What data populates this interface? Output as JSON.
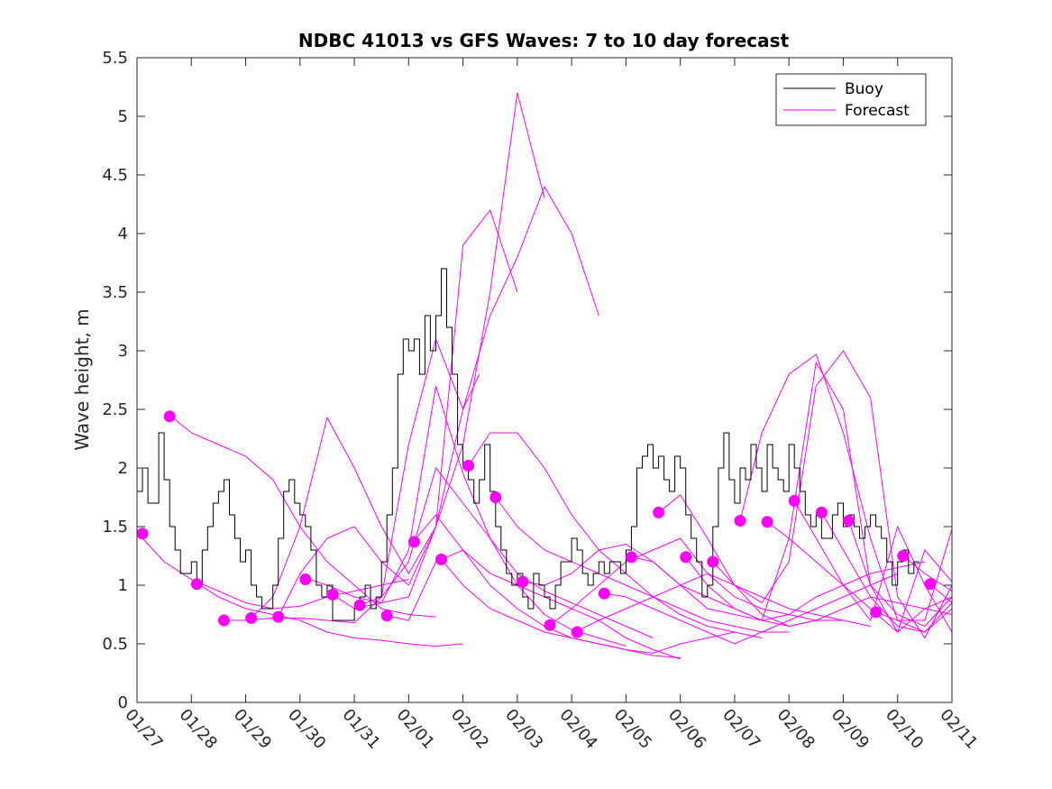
{
  "chart_data": {
    "type": "line",
    "title": "NDBC 41013 vs GFS Waves: 7 to 10 day forecast",
    "xlabel": "",
    "ylabel": "Wave height, m",
    "xlim": [
      0,
      15
    ],
    "ylim": [
      0,
      5.5
    ],
    "x_tick_labels": [
      "01/27",
      "01/28",
      "01/29",
      "01/30",
      "01/31",
      "02/01",
      "02/02",
      "02/03",
      "02/04",
      "02/05",
      "02/06",
      "02/07",
      "02/08",
      "02/09",
      "02/10",
      "02/11"
    ],
    "y_ticks": [
      0,
      0.5,
      1,
      1.5,
      2,
      2.5,
      3,
      3.5,
      4,
      4.5,
      5,
      5.5
    ],
    "y_tick_labels": [
      "0",
      "0.5",
      "1",
      "1.5",
      "2",
      "2.5",
      "3",
      "3.5",
      "4",
      "4.5",
      "5",
      "5.5"
    ],
    "legend": {
      "position": "top-right",
      "entries": [
        "Buoy",
        "Forecast"
      ]
    },
    "colors": {
      "buoy": "#000000",
      "forecast": "#ff00ff"
    },
    "buoy": {
      "name": "Buoy",
      "x": [
        0,
        0.1,
        0.2,
        0.3,
        0.4,
        0.5,
        0.6,
        0.7,
        0.8,
        0.9,
        1.0,
        1.1,
        1.2,
        1.3,
        1.4,
        1.5,
        1.6,
        1.7,
        1.8,
        1.9,
        2.0,
        2.1,
        2.2,
        2.3,
        2.4,
        2.5,
        2.6,
        2.7,
        2.8,
        2.9,
        3.0,
        3.1,
        3.2,
        3.3,
        3.4,
        3.5,
        3.6,
        3.7,
        3.8,
        3.9,
        4.0,
        4.1,
        4.2,
        4.3,
        4.4,
        4.5,
        4.6,
        4.7,
        4.8,
        4.9,
        5.0,
        5.1,
        5.2,
        5.3,
        5.4,
        5.5,
        5.6,
        5.7,
        5.8,
        5.9,
        6.0,
        6.1,
        6.2,
        6.3,
        6.4,
        6.5,
        6.6,
        6.7,
        6.8,
        6.9,
        7.0,
        7.1,
        7.2,
        7.3,
        7.4,
        7.5,
        7.6,
        7.7,
        7.8,
        7.9,
        8.0,
        8.1,
        8.2,
        8.3,
        8.4,
        8.5,
        8.6,
        8.7,
        8.8,
        8.9,
        9.0,
        9.1,
        9.2,
        9.3,
        9.4,
        9.5,
        9.6,
        9.7,
        9.8,
        9.9,
        10.0,
        10.1,
        10.2,
        10.3,
        10.4,
        10.5,
        10.6,
        10.7,
        10.8,
        10.9,
        11.0,
        11.1,
        11.2,
        11.3,
        11.4,
        11.5,
        11.6,
        11.7,
        11.8,
        11.9,
        12.0,
        12.1,
        12.2,
        12.3,
        12.4,
        12.5,
        12.6,
        12.7,
        12.8,
        12.9,
        13.0,
        13.1,
        13.2,
        13.3,
        13.4,
        13.5,
        13.6,
        13.7,
        13.8,
        13.9,
        14.0,
        14.1,
        14.2,
        14.3,
        14.4
      ],
      "y": [
        1.8,
        2.0,
        1.7,
        1.7,
        2.3,
        1.9,
        1.5,
        1.3,
        1.1,
        1.1,
        1.2,
        1.0,
        1.3,
        1.5,
        1.7,
        1.8,
        1.9,
        1.6,
        1.4,
        1.2,
        1.3,
        1.0,
        0.9,
        0.8,
        0.8,
        1.0,
        1.4,
        1.8,
        1.9,
        1.7,
        1.6,
        1.5,
        1.3,
        1.0,
        0.9,
        1.0,
        0.7,
        0.7,
        0.7,
        0.7,
        0.8,
        0.9,
        1.0,
        0.8,
        0.9,
        1.2,
        1.6,
        2.0,
        2.8,
        3.1,
        3.0,
        3.1,
        2.8,
        3.3,
        3.0,
        3.3,
        3.7,
        3.2,
        2.8,
        2.2,
        2.0,
        1.9,
        1.7,
        1.9,
        2.2,
        1.8,
        1.5,
        1.3,
        1.1,
        1.0,
        1.1,
        0.9,
        0.8,
        1.1,
        1.0,
        0.9,
        0.8,
        1.0,
        1.2,
        1.2,
        1.4,
        1.3,
        1.1,
        1.0,
        1.1,
        1.2,
        1.1,
        1.2,
        1.2,
        1.1,
        1.3,
        1.5,
        2.0,
        2.1,
        2.2,
        2.0,
        2.1,
        1.9,
        1.8,
        2.1,
        2.0,
        1.6,
        1.4,
        1.2,
        0.9,
        1.0,
        1.5,
        2.0,
        2.3,
        1.9,
        1.7,
        2.0,
        1.9,
        2.2,
        2.0,
        1.8,
        2.2,
        2.0,
        1.9,
        1.8,
        2.2,
        2.0,
        1.8,
        1.6,
        1.5,
        1.6,
        1.4,
        1.4,
        1.6,
        1.7,
        1.5,
        1.6,
        1.5,
        1.4,
        1.5,
        1.6,
        1.5,
        1.4,
        1.2,
        1.0,
        1.2,
        1.3,
        1.1,
        1.2,
        1.2
      ]
    },
    "forecast_series": [
      {
        "name": "Forecast",
        "x": [
          0.0,
          0.5,
          1.0,
          1.5,
          2.0,
          2.5,
          3.0,
          3.5,
          4.0,
          4.5,
          5.0
        ],
        "y": [
          1.45,
          1.2,
          1.05,
          0.95,
          0.85,
          0.8,
          0.82,
          0.9,
          0.95,
          1.0,
          1.05
        ]
      },
      {
        "name": "Forecast",
        "x": [
          0.6,
          1.0,
          1.5,
          2.0,
          2.5,
          3.0,
          3.5,
          4.0,
          4.5,
          5.0,
          5.5
        ],
        "y": [
          2.45,
          2.3,
          2.2,
          2.1,
          1.9,
          1.5,
          1.2,
          1.0,
          0.8,
          0.75,
          0.73
        ]
      },
      {
        "name": "Forecast",
        "x": [
          1.1,
          1.5,
          2.0,
          2.5,
          3.0,
          3.5,
          4.0,
          4.5,
          5.0,
          5.5,
          6.0
        ],
        "y": [
          1.02,
          0.9,
          0.8,
          0.75,
          0.7,
          0.6,
          0.55,
          0.53,
          0.5,
          0.48,
          0.5
        ]
      },
      {
        "name": "Forecast",
        "x": [
          1.6,
          2.0,
          2.5,
          3.0,
          3.5,
          4.0,
          4.5,
          5.0,
          5.5,
          6.0,
          6.3
        ],
        "y": [
          0.7,
          0.7,
          0.72,
          0.72,
          0.7,
          0.68,
          0.9,
          2.2,
          3.1,
          2.5,
          2.8
        ]
      },
      {
        "name": "Forecast",
        "x": [
          2.1,
          2.5,
          3.0,
          3.5,
          4.0,
          4.5,
          5.0,
          5.5,
          6.0,
          6.5,
          7.0
        ],
        "y": [
          0.72,
          0.9,
          1.5,
          2.43,
          2.0,
          1.5,
          1.1,
          1.5,
          3.9,
          4.2,
          3.5
        ]
      },
      {
        "name": "Forecast",
        "x": [
          2.6,
          3.0,
          3.5,
          4.0,
          4.5,
          5.0,
          5.5,
          6.0,
          6.5,
          7.0,
          7.5
        ],
        "y": [
          0.73,
          1.1,
          1.4,
          1.5,
          1.2,
          1.0,
          1.5,
          2.2,
          3.5,
          5.2,
          4.3
        ]
      },
      {
        "name": "Forecast",
        "x": [
          3.1,
          3.5,
          4.0,
          4.5,
          5.0,
          5.5,
          6.0,
          6.5,
          7.0,
          7.5,
          8.0,
          8.5
        ],
        "y": [
          1.06,
          1.0,
          0.9,
          0.85,
          0.9,
          1.5,
          2.5,
          3.3,
          3.8,
          4.4,
          4.0,
          3.3
        ]
      },
      {
        "name": "Forecast",
        "x": [
          3.6,
          4.0,
          4.5,
          5.0,
          5.5,
          6.0,
          6.5,
          7.0,
          7.5,
          8.0,
          8.5,
          9.0
        ],
        "y": [
          0.92,
          0.8,
          0.85,
          1.3,
          2.7,
          1.95,
          1.4,
          1.0,
          0.75,
          0.62,
          0.55,
          0.48
        ]
      },
      {
        "name": "Forecast",
        "x": [
          4.1,
          4.5,
          5.0,
          5.5,
          6.0,
          6.5,
          7.0,
          7.5,
          8.0,
          8.5,
          9.0,
          9.5
        ],
        "y": [
          0.83,
          0.9,
          1.2,
          2.0,
          1.7,
          1.4,
          1.1,
          0.95,
          0.85,
          0.75,
          0.65,
          0.55
        ]
      },
      {
        "name": "Forecast",
        "x": [
          4.6,
          5.0,
          5.5,
          6.0,
          6.5,
          7.0,
          7.5,
          8.0,
          8.5,
          9.0,
          9.5,
          10.0
        ],
        "y": [
          0.74,
          0.7,
          1.2,
          1.3,
          1.0,
          0.8,
          0.65,
          0.55,
          0.5,
          0.45,
          0.4,
          0.38
        ]
      },
      {
        "name": "Forecast",
        "x": [
          5.1,
          5.5,
          6.0,
          6.5,
          7.0,
          7.5,
          8.0,
          8.5,
          9.0,
          9.5,
          10.0
        ],
        "y": [
          1.38,
          1.6,
          1.3,
          1.1,
          1.0,
          0.9,
          0.8,
          0.7,
          0.55,
          0.45,
          0.37
        ]
      },
      {
        "name": "Forecast",
        "x": [
          5.6,
          6.0,
          6.5,
          7.0,
          7.5,
          8.0,
          8.5,
          9.0,
          9.5,
          10.0,
          10.5,
          11.0
        ],
        "y": [
          1.22,
          1.0,
          0.8,
          0.7,
          0.6,
          0.55,
          0.5,
          0.45,
          0.42,
          0.5,
          0.55,
          0.6
        ]
      },
      {
        "name": "Forecast",
        "x": [
          6.1,
          6.5,
          7.0,
          7.5,
          8.0,
          8.5,
          9.0,
          9.5,
          10.0,
          10.5,
          11.0,
          11.5
        ],
        "y": [
          2.02,
          2.3,
          2.3,
          2.0,
          1.6,
          1.3,
          1.1,
          0.9,
          0.75,
          0.65,
          0.6,
          0.55
        ]
      },
      {
        "name": "Forecast",
        "x": [
          6.6,
          7.0,
          7.5,
          8.0,
          8.5,
          9.0,
          9.5,
          10.0,
          10.5,
          11.0,
          11.5,
          12.0
        ],
        "y": [
          1.75,
          1.5,
          1.3,
          1.2,
          1.1,
          1.0,
          0.9,
          0.8,
          0.7,
          0.65,
          0.6,
          0.6
        ]
      },
      {
        "name": "Forecast",
        "x": [
          7.1,
          7.5,
          8.0,
          8.5,
          9.0,
          9.5,
          10.0,
          10.5,
          11.0,
          11.5,
          12.0,
          12.5
        ],
        "y": [
          1.03,
          1.0,
          1.1,
          1.3,
          1.35,
          1.2,
          1.0,
          0.8,
          0.75,
          0.7,
          0.65,
          0.7
        ]
      },
      {
        "name": "Forecast",
        "x": [
          7.6,
          8.0,
          8.5,
          9.0,
          9.5,
          10.0,
          10.5,
          11.0,
          11.5,
          12.0,
          12.5,
          13.0
        ],
        "y": [
          0.66,
          0.8,
          1.0,
          1.2,
          1.3,
          1.4,
          1.1,
          0.9,
          0.8,
          0.75,
          0.7,
          0.7
        ]
      },
      {
        "name": "Forecast",
        "x": [
          8.1,
          8.5,
          9.0,
          9.5,
          10.0,
          10.5,
          11.0,
          11.5,
          12.0,
          12.5,
          13.0,
          13.5
        ],
        "y": [
          0.61,
          0.7,
          0.8,
          0.9,
          1.0,
          1.1,
          1.0,
          0.9,
          0.8,
          0.75,
          0.7,
          0.65
        ]
      },
      {
        "name": "Forecast",
        "x": [
          8.6,
          9.0,
          9.5,
          10.0,
          10.5,
          11.0,
          11.5,
          12.0,
          12.5,
          13.0,
          13.5,
          14.0
        ],
        "y": [
          0.93,
          0.9,
          0.8,
          0.7,
          0.6,
          0.5,
          0.6,
          0.7,
          0.8,
          0.9,
          1.0,
          1.1
        ]
      },
      {
        "name": "Forecast",
        "x": [
          9.1,
          9.5,
          10.0,
          10.5,
          11.0,
          11.5,
          12.0,
          12.5,
          13.0,
          13.5,
          14.0,
          14.5
        ],
        "y": [
          1.24,
          1.2,
          1.0,
          0.9,
          0.8,
          0.7,
          0.75,
          0.9,
          1.0,
          1.1,
          1.15,
          1.2
        ]
      },
      {
        "name": "Forecast",
        "x": [
          9.6,
          10.0,
          10.5,
          11.0,
          11.5,
          12.0,
          12.5,
          13.0,
          13.5,
          14.0,
          14.5,
          15.0
        ],
        "y": [
          1.62,
          1.77,
          1.4,
          1.0,
          0.75,
          0.65,
          0.7,
          0.8,
          0.9,
          0.85,
          0.8,
          0.75
        ]
      },
      {
        "name": "Forecast",
        "x": [
          10.1,
          10.5,
          11.0,
          11.5,
          12.0,
          12.5,
          13.0,
          13.5,
          14.0,
          14.5,
          15.0
        ],
        "y": [
          1.24,
          1.0,
          0.8,
          0.7,
          1.4,
          2.9,
          2.5,
          1.0,
          0.6,
          0.8,
          0.9
        ]
      },
      {
        "name": "Forecast",
        "x": [
          10.6,
          11.0,
          11.5,
          12.0,
          12.5,
          13.0,
          13.5,
          14.0,
          14.5,
          15.0
        ],
        "y": [
          1.2,
          1.0,
          0.85,
          1.2,
          2.7,
          3.0,
          2.6,
          0.9,
          0.55,
          1.0
        ]
      },
      {
        "name": "Forecast",
        "x": [
          11.1,
          11.5,
          12.0,
          12.5,
          13.0,
          13.5,
          14.0,
          14.5,
          15.0
        ],
        "y": [
          1.55,
          2.3,
          2.8,
          2.97,
          2.3,
          1.4,
          0.7,
          0.7,
          1.48
        ]
      },
      {
        "name": "Forecast",
        "x": [
          11.6,
          12.0,
          12.5,
          13.0,
          13.5,
          14.0,
          14.5,
          15.0
        ],
        "y": [
          1.54,
          1.4,
          1.2,
          1.0,
          0.8,
          0.6,
          1.3,
          1.03
        ]
      },
      {
        "name": "Forecast",
        "x": [
          12.1,
          12.5,
          13.0,
          13.5,
          14.0,
          14.5,
          15.0
        ],
        "y": [
          1.72,
          1.4,
          1.0,
          0.7,
          1.5,
          1.0,
          0.6
        ]
      },
      {
        "name": "Forecast",
        "x": [
          12.6,
          13.0,
          13.5,
          14.0,
          14.5,
          15.0
        ],
        "y": [
          1.62,
          1.3,
          0.9,
          0.65,
          0.6,
          0.85
        ]
      },
      {
        "name": "Forecast",
        "x": [
          13.1,
          13.5,
          14.0,
          14.5,
          15.0
        ],
        "y": [
          1.55,
          1.0,
          0.75,
          0.65,
          0.9
        ]
      },
      {
        "name": "Forecast",
        "x": [
          13.6,
          14.0,
          14.5,
          15.0
        ],
        "y": [
          0.77,
          0.7,
          0.6,
          0.8
        ]
      },
      {
        "name": "Forecast",
        "x": [
          14.1,
          14.5,
          15.0
        ],
        "y": [
          1.25,
          1.1,
          0.95
        ]
      },
      {
        "name": "Forecast",
        "x": [
          14.6,
          15.0
        ],
        "y": [
          1.01,
          0.85
        ]
      }
    ],
    "forecast_markers": {
      "x": [
        0.1,
        0.6,
        1.1,
        1.6,
        2.1,
        2.6,
        3.1,
        3.6,
        4.1,
        4.6,
        5.1,
        5.6,
        6.1,
        6.6,
        7.1,
        7.6,
        8.1,
        8.6,
        9.1,
        9.6,
        10.1,
        10.6,
        11.1,
        11.6,
        12.1,
        12.6,
        13.1,
        13.6,
        14.1,
        14.6
      ],
      "y": [
        1.44,
        2.44,
        1.01,
        0.7,
        0.72,
        0.73,
        1.05,
        0.92,
        0.83,
        0.74,
        1.37,
        1.22,
        2.02,
        1.75,
        1.03,
        0.66,
        0.6,
        0.93,
        1.24,
        1.62,
        1.24,
        1.2,
        1.55,
        1.54,
        1.72,
        1.62,
        1.55,
        0.77,
        1.25,
        1.01
      ]
    }
  }
}
